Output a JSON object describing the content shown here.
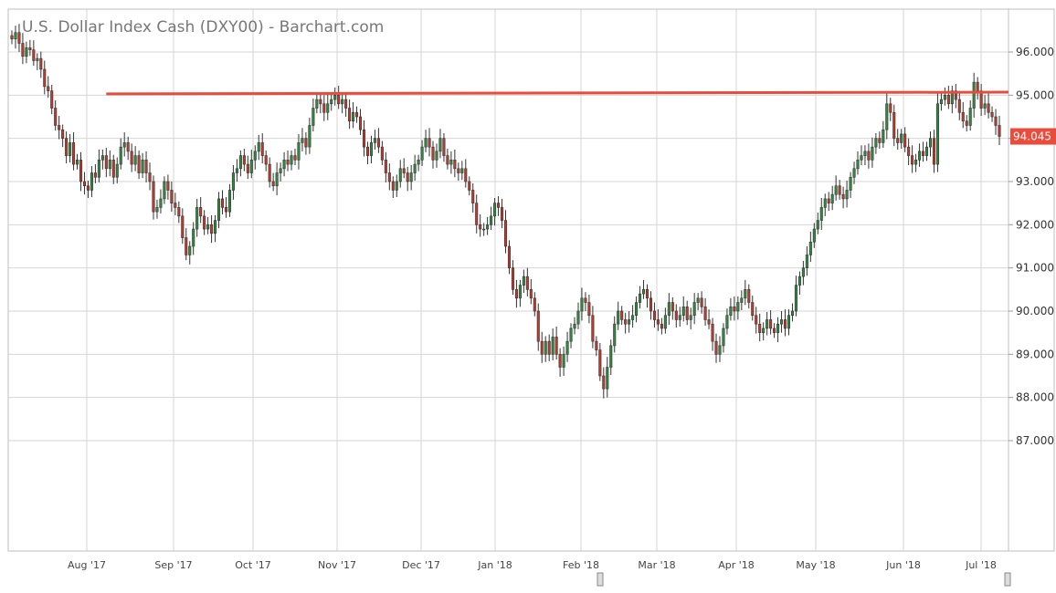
{
  "chart_data": {
    "type": "candlestick",
    "title": "U.S. Dollar Index Cash (DXY00) - Barchart.com",
    "ylim": [
      86.0,
      96.8
    ],
    "y_ticks": [
      "96.000",
      "95.000",
      "94.000",
      "93.000",
      "92.000",
      "91.000",
      "90.000",
      "89.000",
      "88.000",
      "87.000"
    ],
    "x_ticks": [
      "Aug '17",
      "Sep '17",
      "Oct '17",
      "Nov '17",
      "Dec '17",
      "Jan '18",
      "Feb '18",
      "Mar '18",
      "Apr '18",
      "May '18",
      "Jun '18",
      "Jul '18"
    ],
    "grid": true,
    "last_price": "94.045",
    "resistance_line": {
      "start_index": 26,
      "y_start": 95.03,
      "y_end": 95.07
    },
    "colors": {
      "up": "#2e8b3d",
      "down": "#c0392b",
      "line": "#e74c3c",
      "last_badge": "#e74c3c",
      "grid": "#d6d6d6",
      "frame": "#bfbfbf"
    },
    "candles": [
      {
        "c": 96.3
      },
      {
        "c": 96.45
      },
      {
        "c": 96.2
      },
      {
        "c": 95.9
      },
      {
        "c": 96.1
      },
      {
        "c": 96.05
      },
      {
        "c": 95.8
      },
      {
        "c": 95.85
      },
      {
        "c": 95.6
      },
      {
        "c": 95.2
      },
      {
        "c": 95.1
      },
      {
        "c": 94.7
      },
      {
        "c": 94.3
      },
      {
        "c": 94.2
      },
      {
        "c": 94.0
      },
      {
        "c": 93.6
      },
      {
        "c": 93.9
      },
      {
        "c": 93.4
      },
      {
        "c": 93.5
      },
      {
        "c": 93.0
      },
      {
        "c": 92.9
      },
      {
        "c": 92.8
      },
      {
        "c": 93.2
      },
      {
        "c": 93.1
      },
      {
        "c": 93.5
      },
      {
        "c": 93.6
      },
      {
        "c": 93.3
      },
      {
        "c": 93.5
      },
      {
        "c": 93.1
      },
      {
        "c": 93.4
      },
      {
        "c": 93.8
      },
      {
        "c": 93.9
      },
      {
        "c": 93.7
      },
      {
        "c": 93.4
      },
      {
        "c": 93.6
      },
      {
        "c": 93.2
      },
      {
        "c": 93.5
      },
      {
        "c": 93.2
      },
      {
        "c": 93.0
      },
      {
        "c": 92.3
      },
      {
        "c": 92.4
      },
      {
        "c": 92.6
      },
      {
        "c": 93.0
      },
      {
        "c": 92.8
      },
      {
        "c": 92.5
      },
      {
        "c": 92.4
      },
      {
        "c": 92.2
      },
      {
        "c": 91.7
      },
      {
        "c": 91.3
      },
      {
        "c": 91.5
      },
      {
        "c": 91.9
      },
      {
        "c": 92.4
      },
      {
        "c": 92.2
      },
      {
        "c": 91.9
      },
      {
        "c": 92.0
      },
      {
        "c": 91.8
      },
      {
        "c": 92.1
      },
      {
        "c": 92.6
      },
      {
        "c": 92.4
      },
      {
        "c": 92.3
      },
      {
        "c": 92.8
      },
      {
        "c": 93.2
      },
      {
        "c": 93.3
      },
      {
        "c": 93.6
      },
      {
        "c": 93.4
      },
      {
        "c": 93.2
      },
      {
        "c": 93.5
      },
      {
        "c": 93.7
      },
      {
        "c": 93.9
      },
      {
        "c": 93.6
      },
      {
        "c": 93.4
      },
      {
        "c": 93.0
      },
      {
        "c": 92.9
      },
      {
        "c": 93.2
      },
      {
        "c": 93.3
      },
      {
        "c": 93.5
      },
      {
        "c": 93.4
      },
      {
        "c": 93.6
      },
      {
        "c": 93.5
      },
      {
        "c": 93.9
      },
      {
        "c": 94.0
      },
      {
        "c": 93.8
      },
      {
        "c": 94.3
      },
      {
        "c": 94.7
      },
      {
        "c": 94.9
      },
      {
        "c": 94.8
      },
      {
        "c": 94.6
      },
      {
        "c": 94.8
      },
      {
        "c": 94.9
      },
      {
        "c": 95.0
      },
      {
        "c": 94.8
      },
      {
        "c": 94.9
      },
      {
        "c": 94.7
      },
      {
        "c": 94.4
      },
      {
        "c": 94.6
      },
      {
        "c": 94.5
      },
      {
        "c": 94.2
      },
      {
        "c": 93.8
      },
      {
        "c": 93.6
      },
      {
        "c": 93.9
      },
      {
        "c": 94.0
      },
      {
        "c": 93.8
      },
      {
        "c": 93.5
      },
      {
        "c": 93.2
      },
      {
        "c": 93.0
      },
      {
        "c": 92.8
      },
      {
        "c": 93.0
      },
      {
        "c": 93.3
      },
      {
        "c": 93.2
      },
      {
        "c": 93.0
      },
      {
        "c": 93.2
      },
      {
        "c": 93.4
      },
      {
        "c": 93.5
      },
      {
        "c": 93.8
      },
      {
        "c": 94.0
      },
      {
        "c": 93.8
      },
      {
        "c": 93.5
      },
      {
        "c": 93.7
      },
      {
        "c": 94.0
      },
      {
        "c": 93.6
      },
      {
        "c": 93.4
      },
      {
        "c": 93.5
      },
      {
        "c": 93.3
      },
      {
        "c": 93.2
      },
      {
        "c": 93.3
      },
      {
        "c": 93.0
      },
      {
        "c": 92.8
      },
      {
        "c": 92.5
      },
      {
        "c": 92.0
      },
      {
        "c": 91.9
      },
      {
        "c": 91.9
      },
      {
        "c": 92.0
      },
      {
        "c": 92.2
      },
      {
        "c": 92.5
      },
      {
        "c": 92.4
      },
      {
        "c": 92.1
      },
      {
        "c": 91.5
      },
      {
        "c": 91.0
      },
      {
        "c": 90.5
      },
      {
        "c": 90.3
      },
      {
        "c": 90.6
      },
      {
        "c": 90.8
      },
      {
        "c": 90.5
      },
      {
        "c": 90.3
      },
      {
        "c": 90.0
      },
      {
        "c": 89.3
      },
      {
        "c": 89.0
      },
      {
        "c": 89.3
      },
      {
        "c": 89.0
      },
      {
        "c": 89.4
      },
      {
        "c": 89.0
      },
      {
        "c": 88.7
      },
      {
        "c": 89.0
      },
      {
        "c": 89.3
      },
      {
        "c": 89.6
      },
      {
        "c": 89.7
      },
      {
        "c": 90.0
      },
      {
        "c": 90.3
      },
      {
        "c": 90.2
      },
      {
        "c": 89.9
      },
      {
        "c": 89.3
      },
      {
        "c": 89.1
      },
      {
        "c": 88.5
      },
      {
        "c": 88.2
      },
      {
        "c": 88.7
      },
      {
        "c": 89.2
      },
      {
        "c": 89.7
      },
      {
        "c": 90.0
      },
      {
        "c": 89.8
      },
      {
        "c": 89.7
      },
      {
        "c": 89.8
      },
      {
        "c": 89.9
      },
      {
        "c": 90.2
      },
      {
        "c": 90.4
      },
      {
        "c": 90.5
      },
      {
        "c": 90.3
      },
      {
        "c": 90.0
      },
      {
        "c": 89.8
      },
      {
        "c": 89.7
      },
      {
        "c": 89.6
      },
      {
        "c": 89.9
      },
      {
        "c": 90.2
      },
      {
        "c": 90.0
      },
      {
        "c": 89.8
      },
      {
        "c": 89.9
      },
      {
        "c": 90.1
      },
      {
        "c": 89.8
      },
      {
        "c": 89.9
      },
      {
        "c": 90.2
      },
      {
        "c": 90.3
      },
      {
        "c": 90.1
      },
      {
        "c": 89.8
      },
      {
        "c": 89.7
      },
      {
        "c": 89.3
      },
      {
        "c": 89.0
      },
      {
        "c": 89.2
      },
      {
        "c": 89.6
      },
      {
        "c": 89.9
      },
      {
        "c": 90.1
      },
      {
        "c": 90.0
      },
      {
        "c": 90.2
      },
      {
        "c": 90.3
      },
      {
        "c": 90.5
      },
      {
        "c": 90.2
      },
      {
        "c": 89.9
      },
      {
        "c": 89.7
      },
      {
        "c": 89.5
      },
      {
        "c": 89.6
      },
      {
        "c": 89.8
      },
      {
        "c": 89.6
      },
      {
        "c": 89.5
      },
      {
        "c": 89.7
      },
      {
        "c": 89.8
      },
      {
        "c": 89.6
      },
      {
        "c": 89.9
      },
      {
        "c": 90.0
      },
      {
        "c": 90.6
      },
      {
        "c": 90.8
      },
      {
        "c": 91.0
      },
      {
        "c": 91.3
      },
      {
        "c": 91.6
      },
      {
        "c": 91.9
      },
      {
        "c": 92.1
      },
      {
        "c": 92.4
      },
      {
        "c": 92.6
      },
      {
        "c": 92.5
      },
      {
        "c": 92.7
      },
      {
        "c": 92.9
      },
      {
        "c": 92.7
      },
      {
        "c": 92.6
      },
      {
        "c": 92.8
      },
      {
        "c": 93.1
      },
      {
        "c": 93.3
      },
      {
        "c": 93.5
      },
      {
        "c": 93.6
      },
      {
        "c": 93.7
      },
      {
        "c": 93.5
      },
      {
        "c": 93.8
      },
      {
        "c": 94.0
      },
      {
        "c": 93.9
      },
      {
        "c": 94.2
      },
      {
        "c": 94.8
      },
      {
        "c": 94.6
      },
      {
        "c": 94.0
      },
      {
        "c": 93.9
      },
      {
        "c": 94.1
      },
      {
        "c": 93.8
      },
      {
        "c": 93.6
      },
      {
        "c": 93.4
      },
      {
        "c": 93.5
      },
      {
        "c": 93.7
      },
      {
        "c": 93.6
      },
      {
        "c": 93.8
      },
      {
        "c": 94.0
      },
      {
        "c": 93.4
      },
      {
        "c": 94.8
      },
      {
        "c": 94.9
      },
      {
        "c": 95.0
      },
      {
        "c": 94.8
      },
      {
        "c": 95.1
      },
      {
        "c": 94.9
      },
      {
        "c": 94.6
      },
      {
        "c": 94.4
      },
      {
        "c": 94.3
      },
      {
        "c": 94.7
      },
      {
        "c": 95.3
      },
      {
        "c": 95.1
      },
      {
        "c": 94.7
      },
      {
        "c": 94.8
      },
      {
        "c": 94.6
      },
      {
        "c": 94.5
      },
      {
        "c": 94.3
      },
      {
        "c": 94.045
      }
    ]
  }
}
